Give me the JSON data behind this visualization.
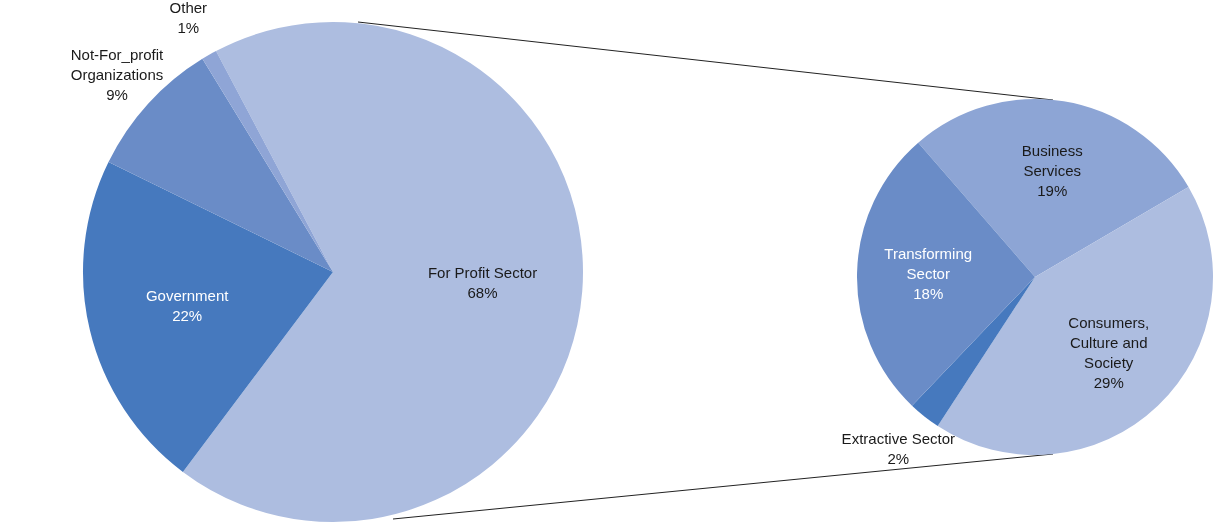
{
  "chart_data": [
    {
      "type": "pie",
      "categories": [
        "For Profit Sector",
        "Government",
        "Not-For_profit Organizations",
        "Other"
      ],
      "values": [
        68,
        22,
        9,
        1
      ],
      "value_labels": [
        "68%",
        "22%",
        "9%",
        "1%"
      ],
      "colors": [
        "#adbde0",
        "#4679be",
        "#6a8cc7",
        "#8fa5d6"
      ]
    },
    {
      "type": "pie",
      "categories": [
        "Business Services",
        "Consumers, Culture and Society",
        "Extractive Sector",
        "Transforming Sector"
      ],
      "values": [
        19,
        29,
        2,
        18
      ],
      "value_labels": [
        "19%",
        "29%",
        "2%",
        "18%"
      ],
      "colors": [
        "#8da5d5",
        "#adbde0",
        "#4679be",
        "#6a8cc7"
      ]
    }
  ]
}
